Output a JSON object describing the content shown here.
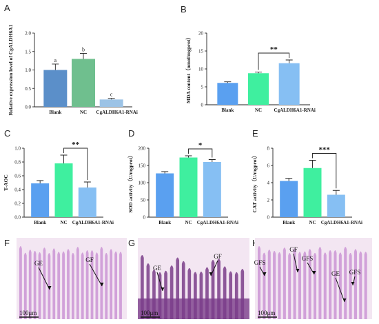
{
  "colors": {
    "blank_A": "#5b8fc9",
    "nc_A": "#6fbf8e",
    "rnai_A": "#9cc3e6",
    "blank": "#5aa0f0",
    "nc": "#3fef9f",
    "rnai": "#86bff3",
    "tissue_bg": "#f3e6f2",
    "tissue_fold": "#c58ad0",
    "tissue_dark": "#7a3d8a"
  },
  "chart_data": [
    {
      "panel": "A",
      "type": "bar",
      "categories": [
        "Blank",
        "NC",
        "CgALDH6A1-RNAi"
      ],
      "values": [
        1.0,
        1.3,
        0.2
      ],
      "errors": [
        0.16,
        0.15,
        0.03
      ],
      "letters": [
        "a",
        "b",
        "c"
      ],
      "ylabel": "Relative expression level of CgALDH6A1",
      "ylim": [
        0,
        2.0
      ],
      "yticks": [
        "0.0",
        "0.5",
        "1.0",
        "1.5",
        "2.0"
      ]
    },
    {
      "panel": "B",
      "type": "bar",
      "categories": [
        "Blank",
        "NC",
        "CgALDH6A1-RNAi"
      ],
      "values": [
        6.1,
        8.8,
        11.6
      ],
      "errors": [
        0.3,
        0.35,
        0.9
      ],
      "ylabel": "MDA content（nmol/mgprot）",
      "ylim": [
        0,
        20
      ],
      "yticks": [
        "0",
        "5",
        "10",
        "15",
        "20"
      ],
      "significance": {
        "from": 1,
        "to": 2,
        "label": "**"
      }
    },
    {
      "panel": "C",
      "type": "bar",
      "categories": [
        "Blank",
        "NC",
        "CgALDH6A1-RNAi"
      ],
      "values": [
        0.49,
        0.78,
        0.43
      ],
      "errors": [
        0.04,
        0.12,
        0.08
      ],
      "ylabel": "T-AOC",
      "ylim": [
        0,
        1.0
      ],
      "yticks": [
        "0.0",
        "0.2",
        "0.4",
        "0.6",
        "0.8",
        "1.0"
      ],
      "significance": {
        "from": 1,
        "to": 2,
        "label": "**"
      }
    },
    {
      "panel": "D",
      "type": "bar",
      "categories": [
        "Blank",
        "NC",
        "CgALDH6A1-RNAi"
      ],
      "values": [
        127,
        173,
        160
      ],
      "errors": [
        5,
        5,
        7
      ],
      "ylabel": "SOD activity（U/mgprot）",
      "ylim": [
        0,
        200
      ],
      "yticks": [
        "0",
        "50",
        "100",
        "150",
        "200"
      ],
      "significance": {
        "from": 1,
        "to": 2,
        "label": "*"
      }
    },
    {
      "panel": "E",
      "type": "bar",
      "categories": [
        "Blank",
        "NC",
        "CgALDH6A1-RNAi"
      ],
      "values": [
        4.2,
        5.7,
        2.6
      ],
      "errors": [
        0.3,
        0.9,
        0.5
      ],
      "ylabel": "CAT activity（U/mgprot）",
      "ylim": [
        0,
        8
      ],
      "yticks": [
        "0",
        "2",
        "4",
        "6",
        "8"
      ],
      "significance": {
        "from": 1,
        "to": 2,
        "label": "***"
      }
    }
  ],
  "histology": [
    {
      "panel": "F",
      "labels": [
        "GE",
        "GF"
      ],
      "scale": "100μm"
    },
    {
      "panel": "G",
      "labels": [
        "GF",
        "GE"
      ],
      "scale": "100μm"
    },
    {
      "panel": "H",
      "labels": [
        "GF",
        "GFS",
        "GFS",
        "GE",
        "GFS"
      ],
      "scale": "100μm"
    }
  ]
}
